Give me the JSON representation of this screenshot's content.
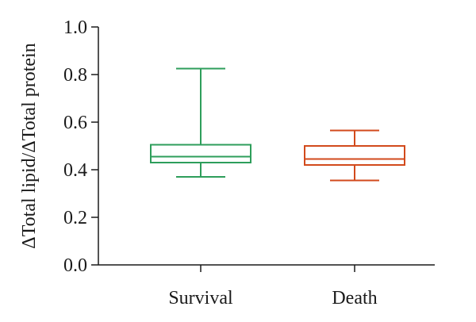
{
  "chart_data": {
    "type": "boxplot",
    "title": "",
    "ylabel": "ΔTotal lipid/ΔTotal protein",
    "xlabel": "",
    "ylim": [
      0.0,
      1.0
    ],
    "yticks": [
      0.0,
      0.2,
      0.4,
      0.6,
      0.8,
      1.0
    ],
    "ytick_labels": [
      "0.0",
      "0.2",
      "0.4",
      "0.6",
      "0.8",
      "1.0"
    ],
    "grid": false,
    "categories": [
      "Survival",
      "Death"
    ],
    "boxes": [
      {
        "min": 0.37,
        "q1": 0.43,
        "median": 0.455,
        "q3": 0.505,
        "max": 0.825,
        "color": "#2e9e5b"
      },
      {
        "min": 0.355,
        "q1": 0.42,
        "median": 0.445,
        "q3": 0.5,
        "max": 0.565,
        "color": "#d24a1c"
      }
    ]
  }
}
